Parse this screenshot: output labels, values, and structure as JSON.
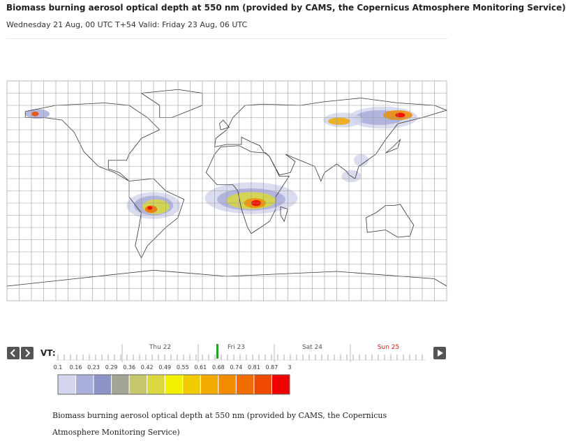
{
  "header": {
    "title": "Biomass burning aerosol optical depth at 550 nm (provided by CAMS, the Copernicus Atmosphere Monitoring Service)",
    "subtitle": "Wednesday 21 Aug, 00 UTC T+54 Valid: Friday 23 Aug, 06 UTC"
  },
  "timeline": {
    "label": "VT:",
    "days": [
      {
        "label": "Thu 22",
        "color": "#555555"
      },
      {
        "label": "Fri 23",
        "color": "#555555"
      },
      {
        "label": "Sat 24",
        "color": "#555555"
      },
      {
        "label": "Sun 25",
        "color": "#d0201a"
      }
    ]
  },
  "legend": {
    "labels": [
      "0.1",
      "0.16",
      "0.23",
      "0.29",
      "0.36",
      "0.42",
      "0.49",
      "0.55",
      "0.61",
      "0.68",
      "0.74",
      "0.81",
      "0.87",
      "3"
    ],
    "colors": [
      "#d3d6ec",
      "#a9aedb",
      "#8c93c6",
      "#a3a594",
      "#c6c66c",
      "#d9d83e",
      "#f2f000",
      "#f1cb00",
      "#f0aa00",
      "#f08c00",
      "#f06c00",
      "#f04a00",
      "#ef0000"
    ]
  },
  "caption": "Biomass burning aerosol optical depth at 550 nm (provided by CAMS, the Copernicus Atmosphere Monitoring Service)"
}
